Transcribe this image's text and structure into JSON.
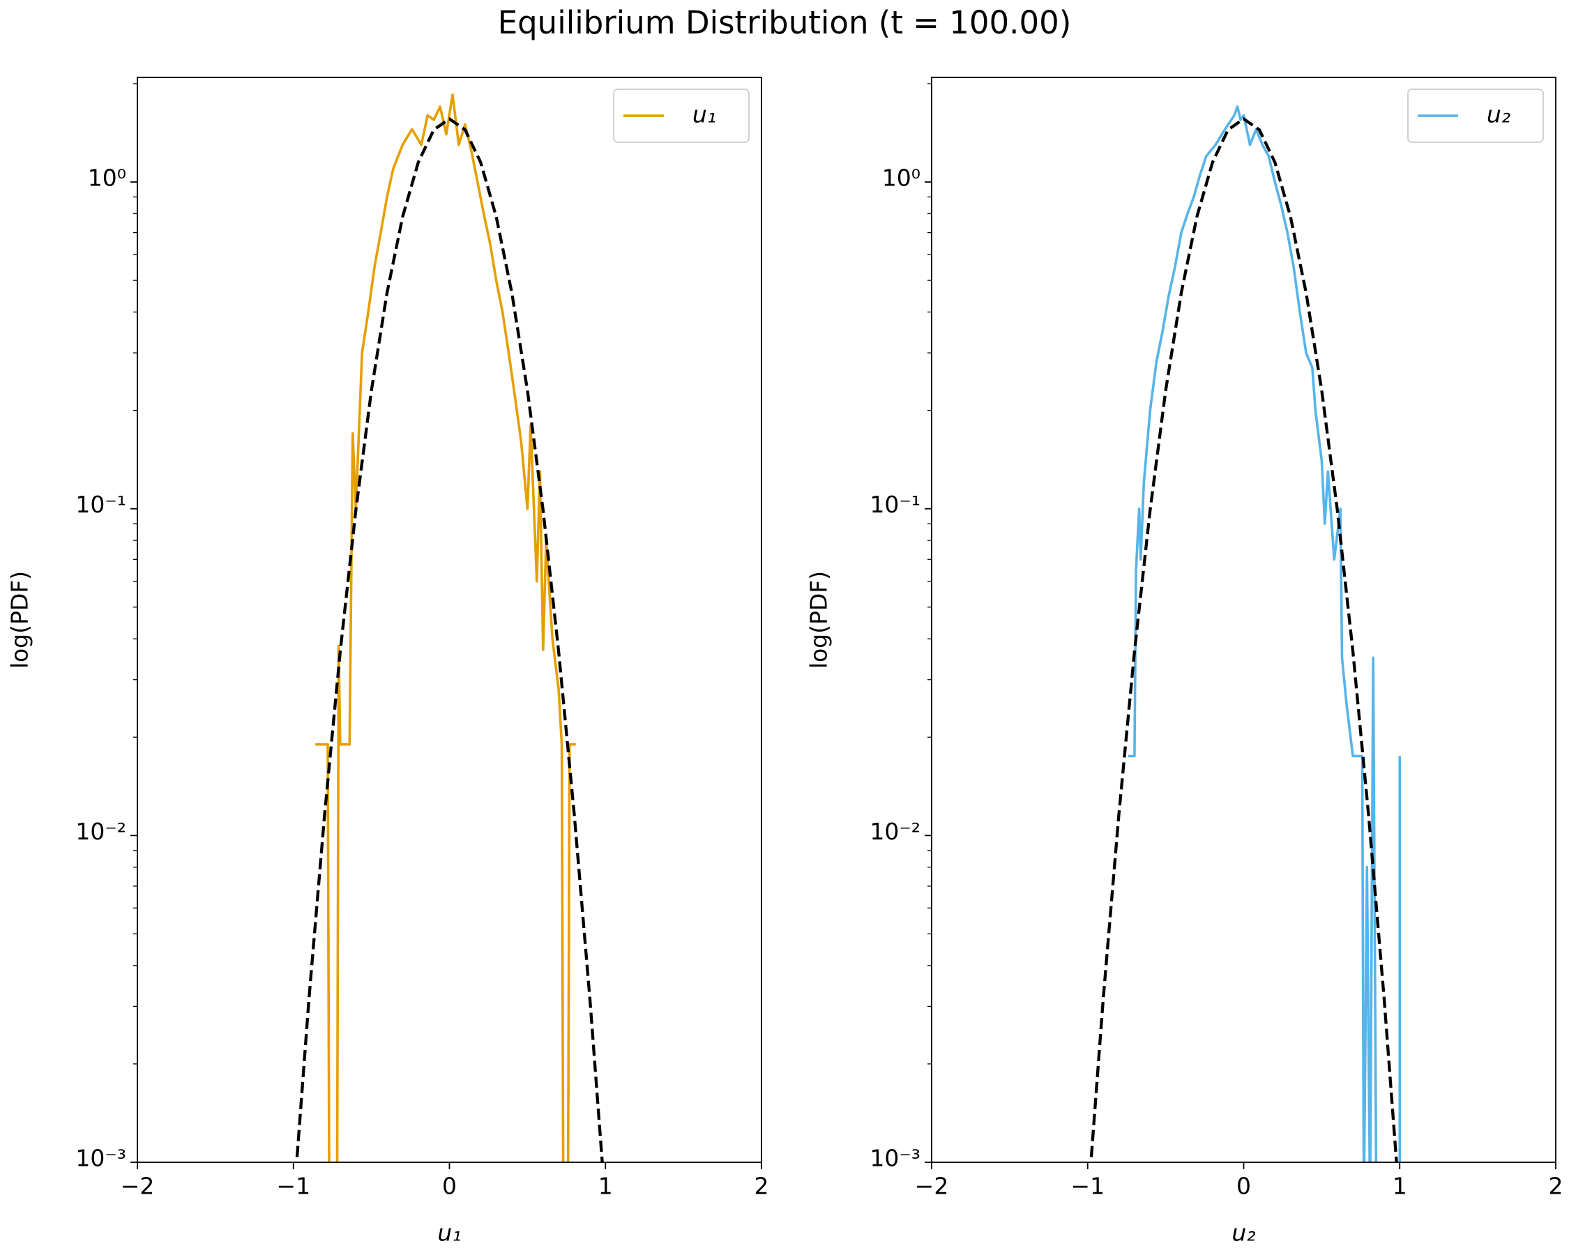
{
  "title": "Equilibrium Distribution (t = 100.00)",
  "chart_data": [
    {
      "type": "line",
      "xlabel": "u₁",
      "ylabel": "log(PDF)",
      "log_y": true,
      "legend": "upper right",
      "xlim": [
        -2,
        2
      ],
      "ylim": [
        0.001,
        2.09
      ],
      "xticks": [
        {
          "value": -2,
          "label": "−2"
        },
        {
          "value": -1,
          "label": "−1"
        },
        0,
        1,
        2
      ],
      "yticks": [
        {
          "value": 0.001,
          "label": "10⁻³"
        },
        {
          "value": 0.01,
          "label": "10⁻²"
        },
        {
          "value": 0.1,
          "label": "10⁻¹"
        },
        {
          "value": 1,
          "label": "10⁰"
        }
      ],
      "series": [
        {
          "name": "u₁",
          "color": "#e69f00",
          "x": [
            -0.86,
            -0.78,
            -0.77,
            -0.72,
            -0.71,
            -0.7,
            -0.64,
            -0.62,
            -0.6,
            -0.56,
            -0.52,
            -0.48,
            -0.44,
            -0.4,
            -0.36,
            -0.3,
            -0.24,
            -0.18,
            -0.14,
            -0.1,
            -0.06,
            -0.02,
            0.02,
            0.06,
            0.1,
            0.14,
            0.18,
            0.22,
            0.26,
            0.3,
            0.34,
            0.38,
            0.42,
            0.46,
            0.5,
            0.52,
            0.56,
            0.58,
            0.6,
            0.62,
            0.66,
            0.7,
            0.72,
            0.73,
            0.76,
            0.77,
            0.81
          ],
          "values": [
            0.019,
            0.019,
            0,
            0,
            0.038,
            0.019,
            0.019,
            0.17,
            0.1,
            0.3,
            0.4,
            0.55,
            0.7,
            0.9,
            1.1,
            1.3,
            1.45,
            1.3,
            1.6,
            1.55,
            1.7,
            1.4,
            1.85,
            1.3,
            1.5,
            1.25,
            1.0,
            0.8,
            0.65,
            0.5,
            0.4,
            0.3,
            0.22,
            0.16,
            0.1,
            0.18,
            0.06,
            0.13,
            0.037,
            0.08,
            0.04,
            0.028,
            0.019,
            0,
            0,
            0.019,
            0.019
          ]
        },
        {
          "color": "#000000",
          "style": "dashed",
          "x": [
            -1.0,
            -0.9,
            -0.8,
            -0.7,
            -0.6,
            -0.5,
            -0.4,
            -0.3,
            -0.2,
            -0.1,
            0,
            0.1,
            0.2,
            0.3,
            0.4,
            0.5,
            0.6,
            0.7,
            0.8,
            0.9,
            1.0
          ],
          "values": [
            0.00074,
            0.00317,
            0.0116,
            0.0366,
            0.099,
            0.23,
            0.458,
            0.783,
            1.149,
            1.445,
            1.56,
            1.445,
            1.149,
            0.783,
            0.458,
            0.23,
            0.099,
            0.0366,
            0.0116,
            0.00317,
            0.00074
          ]
        }
      ]
    },
    {
      "type": "line",
      "xlabel": "u₂",
      "ylabel": "log(PDF)",
      "log_y": true,
      "legend": "upper right",
      "xlim": [
        -2,
        2
      ],
      "ylim": [
        0.001,
        2.09
      ],
      "xticks": [
        {
          "value": -2,
          "label": "−2"
        },
        {
          "value": -1,
          "label": "−1"
        },
        0,
        1,
        2
      ],
      "yticks": [
        {
          "value": 0.001,
          "label": "10⁻³"
        },
        {
          "value": 0.01,
          "label": "10⁻²"
        },
        {
          "value": 0.1,
          "label": "10⁻¹"
        },
        {
          "value": 1,
          "label": "10⁰"
        }
      ],
      "series": [
        {
          "name": "u₂",
          "color": "#56b4e9",
          "x": [
            -0.74,
            -0.7,
            -0.69,
            -0.67,
            -0.66,
            -0.64,
            -0.6,
            -0.56,
            -0.52,
            -0.48,
            -0.44,
            -0.4,
            -0.36,
            -0.32,
            -0.28,
            -0.24,
            -0.18,
            -0.12,
            -0.06,
            -0.04,
            -0.02,
            0.0,
            0.04,
            0.08,
            0.12,
            0.16,
            0.2,
            0.24,
            0.28,
            0.32,
            0.36,
            0.4,
            0.44,
            0.46,
            0.5,
            0.52,
            0.54,
            0.58,
            0.62,
            0.63,
            0.66,
            0.7,
            0.76,
            0.77,
            0.79,
            0.81,
            0.83,
            0.85,
            1.0,
            1.0
          ],
          "values": [
            0.0175,
            0.0175,
            0.065,
            0.1,
            0.07,
            0.12,
            0.2,
            0.28,
            0.35,
            0.45,
            0.55,
            0.7,
            0.8,
            0.9,
            1.05,
            1.2,
            1.3,
            1.45,
            1.6,
            1.7,
            1.55,
            1.6,
            1.3,
            1.45,
            1.3,
            1.2,
            1.0,
            0.85,
            0.7,
            0.55,
            0.4,
            0.3,
            0.27,
            0.2,
            0.14,
            0.09,
            0.13,
            0.07,
            0.1,
            0.035,
            0.025,
            0.0175,
            0.0175,
            0,
            0.008,
            0,
            0.035,
            0,
            0,
            0.0175
          ]
        },
        {
          "color": "#000000",
          "style": "dashed",
          "x": [
            -1.0,
            -0.9,
            -0.8,
            -0.7,
            -0.6,
            -0.5,
            -0.4,
            -0.3,
            -0.2,
            -0.1,
            0,
            0.1,
            0.2,
            0.3,
            0.4,
            0.5,
            0.6,
            0.7,
            0.8,
            0.9,
            1.0
          ],
          "values": [
            0.00074,
            0.00317,
            0.0116,
            0.0366,
            0.099,
            0.23,
            0.458,
            0.783,
            1.149,
            1.445,
            1.56,
            1.445,
            1.149,
            0.783,
            0.458,
            0.23,
            0.099,
            0.0366,
            0.0116,
            0.00317,
            0.00074
          ]
        }
      ]
    }
  ]
}
